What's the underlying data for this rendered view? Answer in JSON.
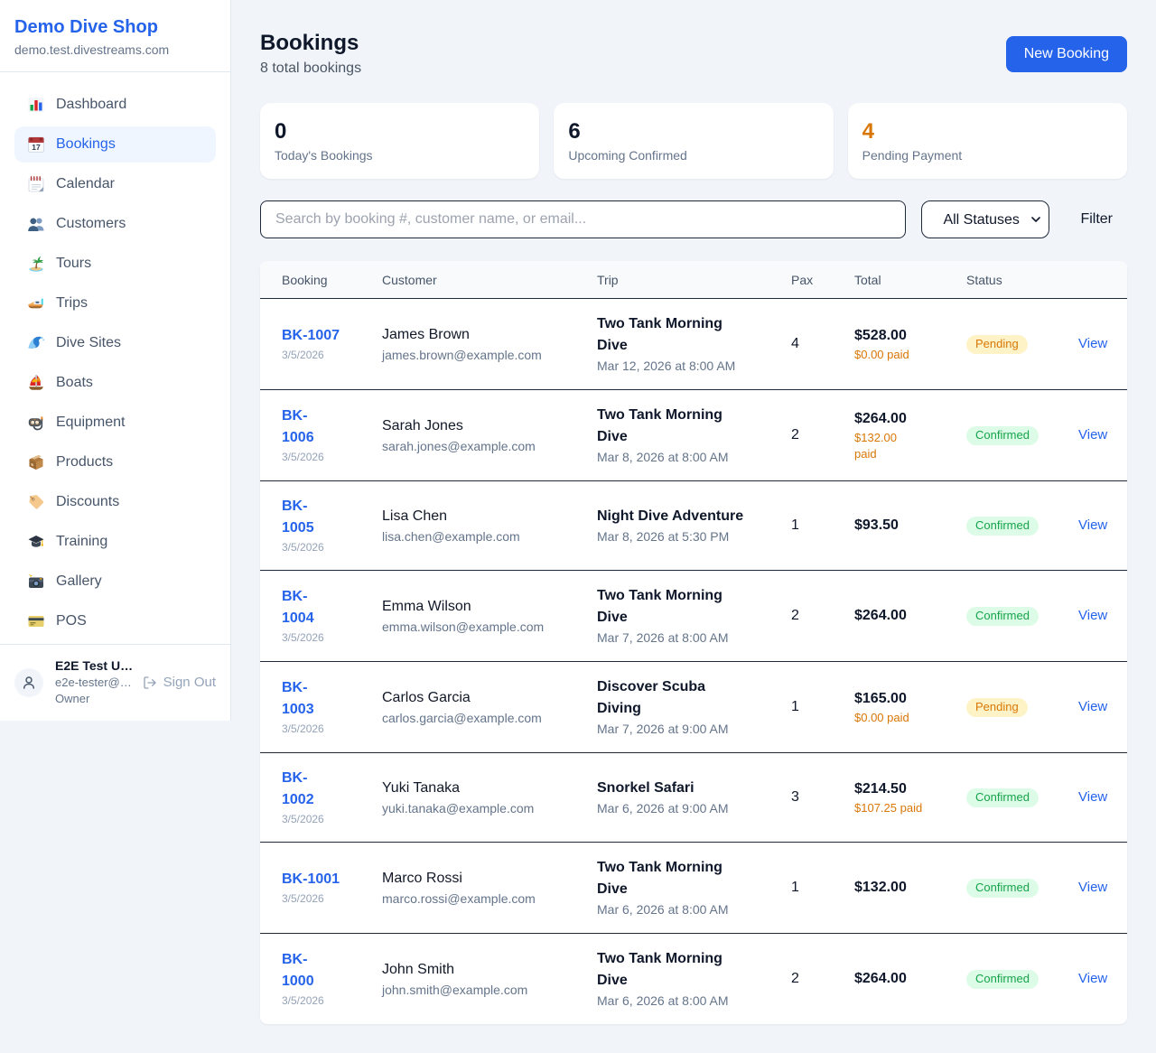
{
  "sidebar": {
    "brand": {
      "name": "Demo Dive Shop",
      "domain": "demo.test.divestreams.com"
    },
    "items": [
      {
        "label": "Dashboard",
        "icon": "bar-chart-icon",
        "active": false
      },
      {
        "label": "Bookings",
        "icon": "calendar-date-icon",
        "active": true
      },
      {
        "label": "Calendar",
        "icon": "spiral-calendar-icon",
        "active": false
      },
      {
        "label": "Customers",
        "icon": "people-icon",
        "active": false
      },
      {
        "label": "Tours",
        "icon": "island-icon",
        "active": false
      },
      {
        "label": "Trips",
        "icon": "speedboat-icon",
        "active": false
      },
      {
        "label": "Dive Sites",
        "icon": "wave-icon",
        "active": false
      },
      {
        "label": "Boats",
        "icon": "sailboat-icon",
        "active": false
      },
      {
        "label": "Equipment",
        "icon": "diving-mask-icon",
        "active": false
      },
      {
        "label": "Products",
        "icon": "package-icon",
        "active": false
      },
      {
        "label": "Discounts",
        "icon": "label-tag-icon",
        "active": false
      },
      {
        "label": "Training",
        "icon": "graduation-cap-icon",
        "active": false
      },
      {
        "label": "Gallery",
        "icon": "camera-icon",
        "active": false
      },
      {
        "label": "POS",
        "icon": "credit-card-icon",
        "active": false
      }
    ],
    "user": {
      "name": "E2E Test U…",
      "email": "e2e-tester@…",
      "role": "Owner",
      "sign_out_label": "Sign Out"
    }
  },
  "header": {
    "title": "Bookings",
    "subtitle": "8 total bookings",
    "new_booking_label": "New Booking"
  },
  "stats": [
    {
      "value": "0",
      "label": "Today's Bookings",
      "accent": "dark"
    },
    {
      "value": "6",
      "label": "Upcoming Confirmed",
      "accent": "dark"
    },
    {
      "value": "4",
      "label": "Pending Payment",
      "accent": "orange"
    }
  ],
  "filters": {
    "search_placeholder": "Search by booking #, customer name, or email...",
    "status_selected": "All Statuses",
    "filter_label": "Filter"
  },
  "table": {
    "columns": [
      "Booking",
      "Customer",
      "Trip",
      "Pax",
      "Total",
      "Status",
      ""
    ],
    "rows": [
      {
        "booking_lines": [
          "BK-1007"
        ],
        "booking_date": "3/5/2026",
        "customer": "James Brown",
        "email": "james.brown@example.com",
        "trip_lines": [
          "Two Tank Morning",
          "Dive"
        ],
        "trip_date": "Mar 12, 2026 at 8:00 AM",
        "pax": "4",
        "total": "$528.00",
        "paid_lines": [
          "$0.00 paid"
        ],
        "status": "Pending",
        "status_kind": "pending",
        "view_label": "View"
      },
      {
        "booking_lines": [
          "BK-",
          "1006"
        ],
        "booking_date": "3/5/2026",
        "customer": "Sarah Jones",
        "email": "sarah.jones@example.com",
        "trip_lines": [
          "Two Tank Morning",
          "Dive"
        ],
        "trip_date": "Mar 8, 2026 at 8:00 AM",
        "pax": "2",
        "total": "$264.00",
        "paid_lines": [
          "$132.00",
          "paid"
        ],
        "status": "Confirmed",
        "status_kind": "confirmed",
        "view_label": "View"
      },
      {
        "booking_lines": [
          "BK-",
          "1005"
        ],
        "booking_date": "3/5/2026",
        "customer": "Lisa Chen",
        "email": "lisa.chen@example.com",
        "trip_lines": [
          "Night Dive Adventure"
        ],
        "trip_date": "Mar 8, 2026 at 5:30 PM",
        "pax": "1",
        "total": "$93.50",
        "paid_lines": [],
        "status": "Confirmed",
        "status_kind": "confirmed",
        "view_label": "View"
      },
      {
        "booking_lines": [
          "BK-",
          "1004"
        ],
        "booking_date": "3/5/2026",
        "customer": "Emma Wilson",
        "email": "emma.wilson@example.com",
        "trip_lines": [
          "Two Tank Morning",
          "Dive"
        ],
        "trip_date": "Mar 7, 2026 at 8:00 AM",
        "pax": "2",
        "total": "$264.00",
        "paid_lines": [],
        "status": "Confirmed",
        "status_kind": "confirmed",
        "view_label": "View"
      },
      {
        "booking_lines": [
          "BK-",
          "1003"
        ],
        "booking_date": "3/5/2026",
        "customer": "Carlos Garcia",
        "email": "carlos.garcia@example.com",
        "trip_lines": [
          "Discover Scuba",
          "Diving"
        ],
        "trip_date": "Mar 7, 2026 at 9:00 AM",
        "pax": "1",
        "total": "$165.00",
        "paid_lines": [
          "$0.00 paid"
        ],
        "status": "Pending",
        "status_kind": "pending",
        "view_label": "View"
      },
      {
        "booking_lines": [
          "BK-",
          "1002"
        ],
        "booking_date": "3/5/2026",
        "customer": "Yuki Tanaka",
        "email": "yuki.tanaka@example.com",
        "trip_lines": [
          "Snorkel Safari"
        ],
        "trip_date": "Mar 6, 2026 at 9:00 AM",
        "pax": "3",
        "total": "$214.50",
        "paid_lines": [
          "$107.25 paid"
        ],
        "status": "Confirmed",
        "status_kind": "confirmed",
        "view_label": "View"
      },
      {
        "booking_lines": [
          "BK-1001"
        ],
        "booking_date": "3/5/2026",
        "customer": "Marco Rossi",
        "email": "marco.rossi@example.com",
        "trip_lines": [
          "Two Tank Morning",
          "Dive"
        ],
        "trip_date": "Mar 6, 2026 at 8:00 AM",
        "pax": "1",
        "total": "$132.00",
        "paid_lines": [],
        "status": "Confirmed",
        "status_kind": "confirmed",
        "view_label": "View"
      },
      {
        "booking_lines": [
          "BK-",
          "1000"
        ],
        "booking_date": "3/5/2026",
        "customer": "John Smith",
        "email": "john.smith@example.com",
        "trip_lines": [
          "Two Tank Morning",
          "Dive"
        ],
        "trip_date": "Mar 6, 2026 at 8:00 AM",
        "pax": "2",
        "total": "$264.00",
        "paid_lines": [],
        "status": "Confirmed",
        "status_kind": "confirmed",
        "view_label": "View"
      }
    ]
  },
  "colors": {
    "accent_blue": "#2563eb",
    "active_nav_bg": "#eff6ff",
    "page_bg": "#f1f5f9",
    "orange": "#d97706",
    "green": "#16a34a",
    "pending_bg": "#fef3c7",
    "confirmed_bg": "#dcfce7",
    "dark_border": "#1e293b"
  }
}
